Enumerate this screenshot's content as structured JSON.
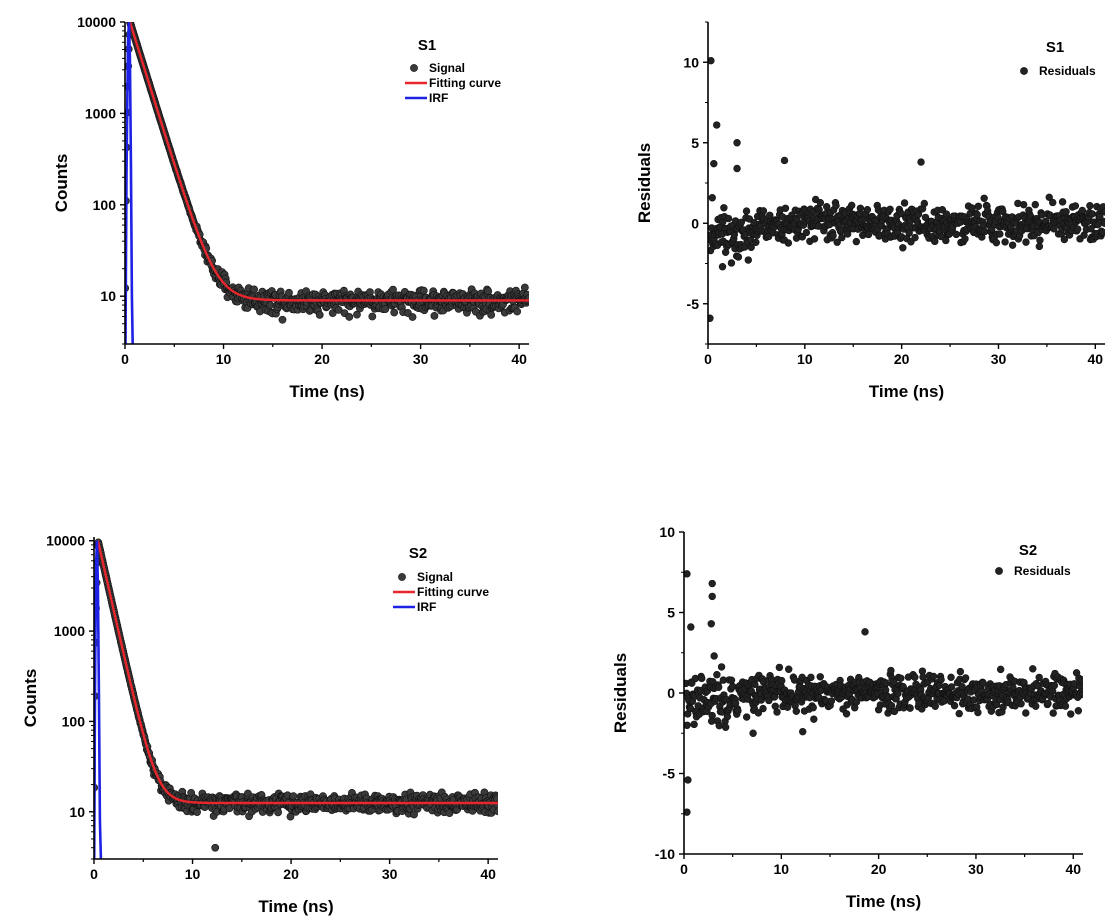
{
  "colors": {
    "signal": "#3a3a3a",
    "fit": "#e8262c",
    "irf": "#1e22e6",
    "axis": "#000000"
  },
  "chart_data": [
    {
      "id": "s1-decay",
      "type": "scatter",
      "title": "S1",
      "xlabel": "Time (ns)",
      "ylabel": "Counts",
      "yscale": "log",
      "xlim": [
        0,
        41
      ],
      "ylim": [
        3,
        10000
      ],
      "xticks": [
        0,
        10,
        20,
        30,
        40
      ],
      "yticks": [
        10,
        100,
        1000,
        10000
      ],
      "grid": false,
      "legend_position": "top-right",
      "series": [
        {
          "name": "Signal",
          "kind": "scatter",
          "model": {
            "amplitude": 10000,
            "tau": 1.25,
            "background": 9,
            "peak": 0.5,
            "noise_frac": 0.35
          }
        },
        {
          "name": "Fitting curve",
          "kind": "line",
          "model": {
            "amplitude": 10000,
            "tau": 1.25,
            "background": 9,
            "peak": 0.5
          }
        },
        {
          "name": "IRF",
          "kind": "line",
          "points": [
            [
              0.05,
              3
            ],
            [
              0.15,
              200
            ],
            [
              0.3,
              6000
            ],
            [
              0.4,
              10000
            ],
            [
              0.5,
              4000
            ],
            [
              0.6,
              300
            ],
            [
              0.7,
              10
            ],
            [
              0.78,
              3
            ]
          ]
        }
      ]
    },
    {
      "id": "s1-residuals",
      "type": "scatter",
      "title": "S1",
      "xlabel": "Time (ns)",
      "ylabel": "Residuals",
      "xlim": [
        0,
        41
      ],
      "ylim": [
        -7.5,
        12.5
      ],
      "xticks": [
        0,
        10,
        20,
        30,
        40
      ],
      "yticks": [
        -5,
        0,
        5,
        10
      ],
      "grid": false,
      "legend_position": "top-right",
      "series": [
        {
          "name": "Residuals",
          "kind": "scatter",
          "noise_sd": 1.0,
          "outliers": [
            [
              0.3,
              10.1
            ],
            [
              0.2,
              -5.9
            ],
            [
              0.9,
              6.1
            ],
            [
              0.6,
              3.7
            ],
            [
              3.0,
              5.0
            ],
            [
              3.0,
              3.4
            ],
            [
              7.9,
              3.9
            ],
            [
              22.0,
              3.8
            ],
            [
              1.5,
              -2.7
            ]
          ]
        }
      ]
    },
    {
      "id": "s2-decay",
      "type": "scatter",
      "title": "S2",
      "xlabel": "Time (ns)",
      "ylabel": "Counts",
      "yscale": "log",
      "xlim": [
        0,
        41
      ],
      "ylim": [
        3,
        11000
      ],
      "xticks": [
        0,
        10,
        20,
        30,
        40
      ],
      "yticks": [
        10,
        100,
        1000,
        10000
      ],
      "grid": false,
      "legend_position": "top-right",
      "series": [
        {
          "name": "Signal",
          "kind": "scatter",
          "model": {
            "amplitude": 10000,
            "tau": 0.9,
            "background": 12.5,
            "peak": 0.4,
            "noise_frac": 0.35
          },
          "outliers": [
            [
              12.3,
              4
            ]
          ]
        },
        {
          "name": "Fitting curve",
          "kind": "line",
          "model": {
            "amplitude": 10000,
            "tau": 0.9,
            "background": 12.5,
            "peak": 0.4
          }
        },
        {
          "name": "IRF",
          "kind": "line",
          "points": [
            [
              0.02,
              3
            ],
            [
              0.1,
              200
            ],
            [
              0.2,
              5000
            ],
            [
              0.3,
              10000
            ],
            [
              0.4,
              3000
            ],
            [
              0.5,
              200
            ],
            [
              0.6,
              8
            ],
            [
              0.7,
              3
            ]
          ]
        }
      ]
    },
    {
      "id": "s2-residuals",
      "type": "scatter",
      "title": "S2",
      "xlabel": "Time (ns)",
      "ylabel": "Residuals",
      "xlim": [
        0,
        41
      ],
      "ylim": [
        -10,
        10
      ],
      "xticks": [
        0,
        10,
        20,
        30,
        40
      ],
      "yticks": [
        -10,
        -5,
        0,
        5,
        10
      ],
      "grid": false,
      "legend_position": "top-right",
      "series": [
        {
          "name": "Residuals",
          "kind": "scatter",
          "noise_sd": 1.0,
          "outliers": [
            [
              0.3,
              7.4
            ],
            [
              0.4,
              -5.4
            ],
            [
              0.3,
              -7.4
            ],
            [
              0.7,
              4.1
            ],
            [
              2.9,
              6.8
            ],
            [
              2.9,
              6.0
            ],
            [
              2.8,
              4.3
            ],
            [
              3.1,
              2.3
            ],
            [
              18.6,
              3.8
            ],
            [
              12.2,
              -2.4
            ],
            [
              7.1,
              -2.5
            ]
          ]
        }
      ]
    }
  ]
}
